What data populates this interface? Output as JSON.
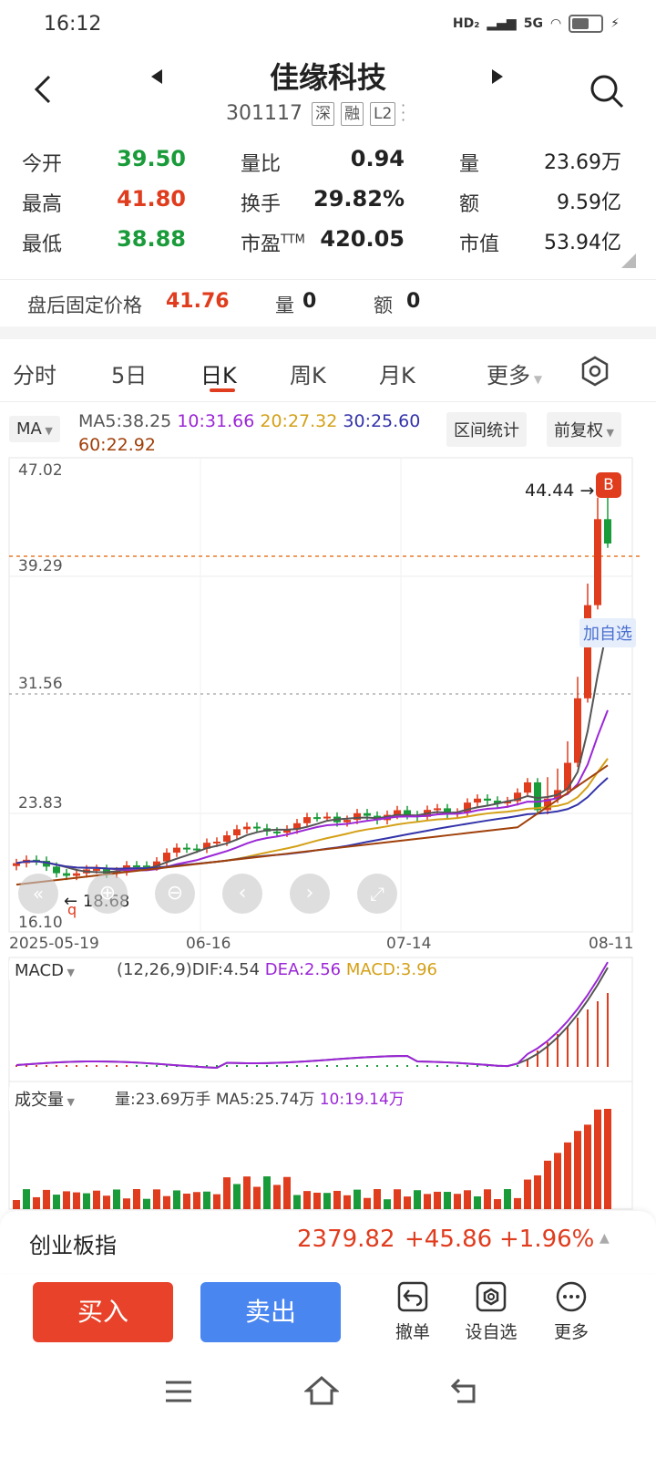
{
  "status": {
    "time": "16:12",
    "hd": "HD₂",
    "net": "5G"
  },
  "header": {
    "title": "佳缘科技",
    "code": "301117",
    "tags": [
      "深",
      "融",
      "L2"
    ]
  },
  "quote": {
    "open_label": "今开",
    "open": "39.50",
    "high_label": "最高",
    "high": "41.80",
    "low_label": "最低",
    "low": "38.88",
    "vol_ratio_label": "量比",
    "vol_ratio": "0.94",
    "turnover_label": "换手",
    "turnover": "29.82%",
    "pe_label": "市盈",
    "pe_sup": "TTM",
    "pe": "420.05",
    "volume_label": "量",
    "volume": "23.69万",
    "amount_label": "额",
    "amount": "9.59亿",
    "mcap_label": "市值",
    "mcap": "53.94亿"
  },
  "after_hours": {
    "label": "盘后固定价格",
    "price": "41.76",
    "vol_label": "量",
    "vol": "0",
    "amt_label": "额",
    "amt": "0"
  },
  "tabs": [
    "分时",
    "5日",
    "日K",
    "周K",
    "月K",
    "更多"
  ],
  "active_tab": "日K",
  "ma": {
    "selector": "MA",
    "ma5": "MA5:38.25",
    "ma10": "10:31.66",
    "ma20": "20:27.32",
    "ma30": "30:25.60",
    "ma60": "60:22.92",
    "range_stats": "区间统计",
    "adjust": "前复权"
  },
  "colors": {
    "up": "#e03c1e",
    "down": "#1a9b3a",
    "ma5": "#555555",
    "ma10": "#9b27d6",
    "ma20": "#d4a017",
    "ma30": "#3333aa",
    "ma60": "#a0400a"
  },
  "chart": {
    "y_labels": [
      "47.02",
      "39.29",
      "31.56",
      "23.83",
      "16.10"
    ],
    "x_labels": [
      "2025-05-19",
      "06-16",
      "07-14",
      "08-11"
    ],
    "high_marker": "44.44",
    "low_marker": "18.68",
    "b_badge": "B",
    "add_watch": "加自选",
    "q_mark": "q"
  },
  "chart_data": {
    "type": "candlestick",
    "y_range": [
      16.1,
      47.02
    ],
    "notes": "Daily K-line; max marker 44.44, min marker 18.68",
    "recent_closes": [
      23.2,
      24.0,
      24.6,
      26.5,
      31.0,
      37.5,
      43.5,
      41.8,
      41.76
    ]
  },
  "macd": {
    "selector": "MACD",
    "params": "(12,26,9)",
    "dif": "DIF:4.54",
    "dea": "DEA:2.56",
    "macd": "MACD:3.96"
  },
  "volume_panel": {
    "selector": "成交量",
    "vol": "量:23.69万手",
    "ma5": "MA5:25.74万",
    "ma10": "10:19.14万"
  },
  "index_bar": {
    "name": "创业板指",
    "value": "2379.82",
    "change": "+45.86",
    "pct": "+1.96%"
  },
  "actions": {
    "buy": "买入",
    "sell": "卖出",
    "cancel": "撤单",
    "watch": "设自选",
    "more": "更多"
  }
}
